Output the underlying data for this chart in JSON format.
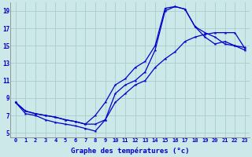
{
  "xlabel": "Graphe des températures (°c)",
  "bg_color": "#cce8e8",
  "line_color": "#0000cc",
  "grid_color": "#aacccc",
  "xlim": [
    -0.5,
    23.5
  ],
  "ylim": [
    4.5,
    20
  ],
  "xticks": [
    0,
    1,
    2,
    3,
    4,
    5,
    6,
    7,
    8,
    9,
    10,
    11,
    12,
    13,
    14,
    15,
    16,
    17,
    18,
    19,
    20,
    21,
    22,
    23
  ],
  "yticks": [
    5,
    7,
    9,
    11,
    13,
    15,
    17,
    19
  ],
  "line1_x": [
    0,
    1,
    2,
    3,
    4,
    5,
    6,
    7,
    8,
    9,
    10,
    11,
    12,
    13,
    14,
    15,
    16,
    17,
    18,
    19,
    20,
    21,
    22,
    23
  ],
  "line1_y": [
    8.5,
    7.5,
    7.2,
    7.0,
    6.8,
    6.5,
    6.3,
    6.0,
    7.0,
    8.5,
    10.5,
    11.2,
    12.5,
    13.2,
    15.0,
    19.3,
    19.5,
    19.2,
    17.2,
    16.5,
    16.0,
    15.2,
    15.0,
    14.8
  ],
  "line2_x": [
    0,
    1,
    2,
    3,
    4,
    5,
    6,
    7,
    8,
    9,
    10,
    11,
    12,
    13,
    14,
    15,
    16,
    17,
    18,
    19,
    20,
    21,
    22,
    23
  ],
  "line2_y": [
    8.5,
    7.5,
    7.2,
    7.0,
    6.8,
    6.5,
    6.3,
    6.0,
    6.0,
    6.5,
    8.5,
    9.5,
    10.5,
    11.0,
    12.5,
    13.5,
    14.3,
    15.5,
    16.0,
    16.3,
    16.5,
    16.5,
    16.5,
    14.7
  ],
  "line3_x": [
    0,
    1,
    2,
    3,
    4,
    5,
    6,
    7,
    8,
    9,
    10,
    11,
    12,
    13,
    14,
    15,
    16,
    17,
    18,
    19,
    20,
    21,
    22,
    23
  ],
  "line3_y": [
    8.5,
    7.2,
    7.0,
    6.5,
    6.2,
    6.0,
    5.8,
    5.5,
    5.2,
    6.5,
    9.5,
    10.5,
    11.0,
    12.0,
    14.5,
    19.0,
    19.5,
    19.2,
    17.2,
    16.0,
    15.2,
    15.5,
    15.0,
    14.5
  ]
}
